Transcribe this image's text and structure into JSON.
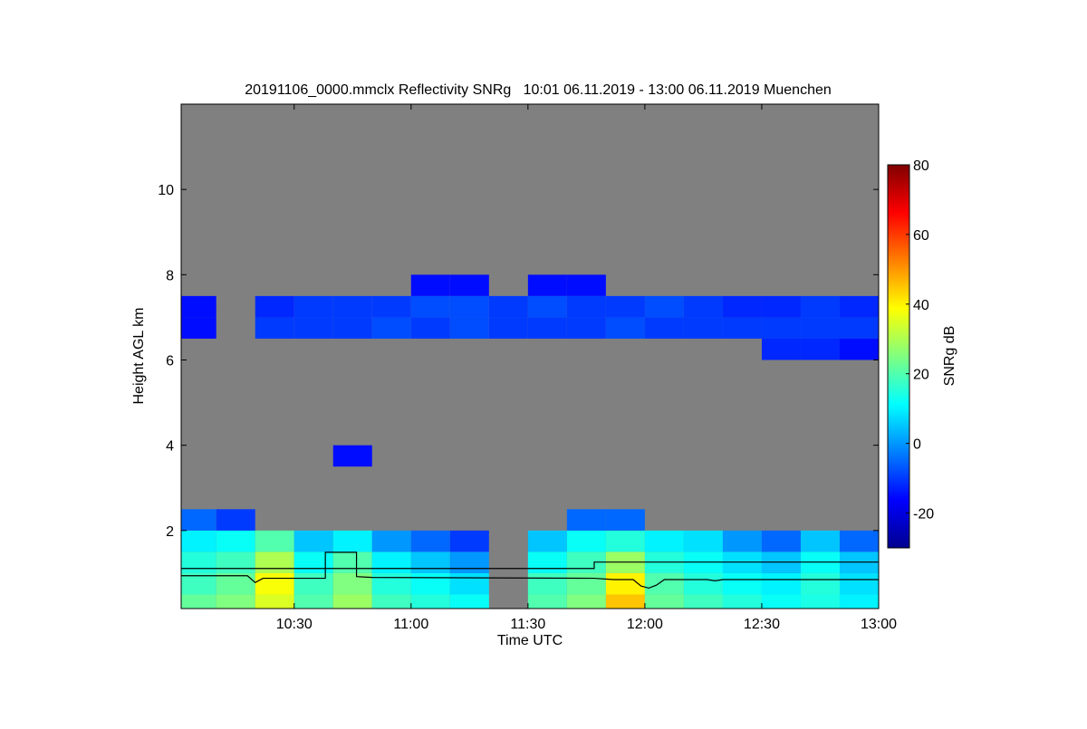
{
  "chart_data": {
    "type": "heatmap",
    "title": "20191106_0000.mmclx Reflectivity SNRg   10:01 06.11.2019 - 13:00 06.11.2019 Muenchen",
    "xlabel": "Time UTC",
    "ylabel": "Height AGL km",
    "colorbar_label": "SNRg dB",
    "xlim_minutes_after_10": [
      1,
      180
    ],
    "ylim": [
      0.17,
      12
    ],
    "x_ticks": [
      {
        "label": "10:30",
        "value": 30
      },
      {
        "label": "11:00",
        "value": 60
      },
      {
        "label": "11:30",
        "value": 90
      },
      {
        "label": "12:00",
        "value": 120
      },
      {
        "label": "12:30",
        "value": 150
      },
      {
        "label": "13:00",
        "value": 180
      }
    ],
    "y_ticks": [
      {
        "label": "2",
        "value": 2
      },
      {
        "label": "4",
        "value": 4
      },
      {
        "label": "6",
        "value": 6
      },
      {
        "label": "8",
        "value": 8
      },
      {
        "label": "10",
        "value": 10
      }
    ],
    "colorbar_range": [
      -30,
      80
    ],
    "colorbar_ticks": [
      {
        "label": "80",
        "value": 80
      },
      {
        "label": "60",
        "value": 60
      },
      {
        "label": "40",
        "value": 40
      },
      {
        "label": "20",
        "value": 20
      },
      {
        "label": "0",
        "value": 0
      },
      {
        "label": "-20",
        "value": -20
      }
    ],
    "colormap": "jet",
    "no_data_color": "#808080",
    "time_bins_minutes_after_10": [
      5,
      15,
      25,
      35,
      45,
      55,
      65,
      75,
      85,
      95,
      105,
      115,
      125,
      135,
      145,
      155,
      165,
      175
    ],
    "bin_width_minutes": 10,
    "bin_height_km": 0.5,
    "rows": [
      {
        "height_km": 0.25,
        "values": [
          22,
          25,
          35,
          20,
          28,
          18,
          15,
          12,
          null,
          20,
          25,
          45,
          22,
          18,
          15,
          12,
          14,
          10
        ]
      },
      {
        "height_km": 0.75,
        "values": [
          18,
          22,
          38,
          18,
          25,
          15,
          12,
          8,
          null,
          18,
          22,
          40,
          20,
          15,
          12,
          10,
          15,
          8
        ]
      },
      {
        "height_km": 1.25,
        "values": [
          15,
          18,
          30,
          12,
          20,
          10,
          5,
          0,
          null,
          12,
          18,
          28,
          15,
          12,
          8,
          5,
          12,
          5
        ]
      },
      {
        "height_km": 1.75,
        "values": [
          10,
          12,
          20,
          5,
          10,
          0,
          -5,
          -10,
          null,
          5,
          12,
          15,
          10,
          8,
          0,
          -5,
          5,
          -5
        ]
      },
      {
        "height_km": 2.25,
        "values": [
          -5,
          -10,
          null,
          null,
          null,
          null,
          null,
          null,
          null,
          null,
          -5,
          -5,
          null,
          null,
          null,
          null,
          null,
          null
        ]
      },
      {
        "height_km": 3.75,
        "values": [
          null,
          null,
          null,
          null,
          -15,
          null,
          null,
          null,
          null,
          null,
          null,
          null,
          null,
          null,
          null,
          null,
          null,
          null
        ]
      },
      {
        "height_km": 6.25,
        "values": [
          null,
          null,
          null,
          null,
          null,
          null,
          null,
          null,
          null,
          null,
          null,
          null,
          null,
          null,
          null,
          -12,
          -12,
          -15
        ]
      },
      {
        "height_km": 6.75,
        "values": [
          -15,
          null,
          -10,
          -10,
          -10,
          -8,
          -10,
          -8,
          -10,
          -10,
          -10,
          -8,
          -10,
          -10,
          -10,
          -10,
          -10,
          -10
        ]
      },
      {
        "height_km": 7.25,
        "values": [
          -15,
          null,
          -12,
          -10,
          -10,
          -10,
          -8,
          -8,
          -10,
          -8,
          -10,
          -10,
          -8,
          -10,
          -12,
          -12,
          -10,
          -12
        ]
      },
      {
        "height_km": 7.75,
        "values": [
          null,
          null,
          null,
          null,
          null,
          null,
          -15,
          -15,
          null,
          -15,
          -15,
          null,
          null,
          null,
          null,
          null,
          null,
          null
        ]
      }
    ],
    "lines": [
      {
        "name": "upper-line",
        "color": "#000000",
        "points": [
          [
            1,
            1.11
          ],
          [
            107,
            1.11
          ],
          [
            107,
            1.26
          ],
          [
            180,
            1.26
          ]
        ]
      },
      {
        "name": "lower-line",
        "color": "#000000",
        "points": [
          [
            1,
            0.94
          ],
          [
            18,
            0.94
          ],
          [
            20,
            0.78
          ],
          [
            22,
            0.88
          ],
          [
            28,
            0.88
          ],
          [
            38,
            0.88
          ],
          [
            38,
            1.49
          ],
          [
            46,
            1.49
          ],
          [
            46,
            0.92
          ],
          [
            50,
            0.9
          ],
          [
            107,
            0.88
          ],
          [
            112,
            0.85
          ],
          [
            117,
            0.85
          ],
          [
            119,
            0.7
          ],
          [
            121,
            0.65
          ],
          [
            123,
            0.72
          ],
          [
            125,
            0.85
          ],
          [
            136,
            0.85
          ],
          [
            138,
            0.82
          ],
          [
            140,
            0.85
          ],
          [
            180,
            0.85
          ]
        ]
      }
    ]
  }
}
